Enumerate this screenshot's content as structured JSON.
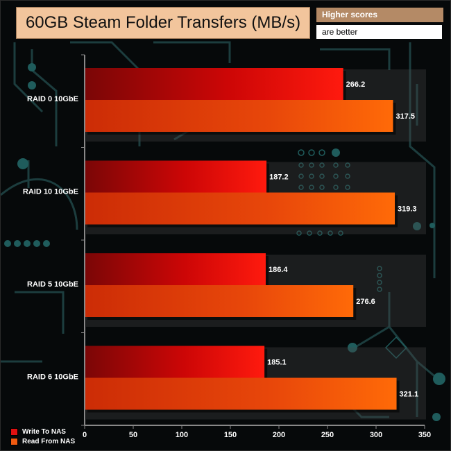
{
  "header": {
    "title": "60GB Steam Folder Transfers (MB/s)",
    "note_line1": "Higher scores",
    "note_line2": "are better"
  },
  "legend": [
    {
      "label": "Write To NAS",
      "color": "#e01010"
    },
    {
      "label": "Read From NAS",
      "color": "#f05a10"
    }
  ],
  "chart_data": {
    "type": "bar",
    "orientation": "horizontal",
    "categories": [
      "RAID 0 10GbE",
      "RAID 10 10GbE",
      "RAID 5 10GbE",
      "RAID 6 10GbE"
    ],
    "series": [
      {
        "name": "Write To NAS",
        "values": [
          266.2,
          187.2,
          186.4,
          185.1
        ],
        "color": "#e01010"
      },
      {
        "name": "Read From NAS",
        "values": [
          317.5,
          319.3,
          276.6,
          321.1
        ],
        "color": "#f05a10"
      }
    ],
    "xlim": [
      0,
      350
    ],
    "xticks": [
      0,
      50,
      100,
      150,
      200,
      250,
      300,
      350
    ],
    "grid": false,
    "legend_position": "bottom-left"
  }
}
